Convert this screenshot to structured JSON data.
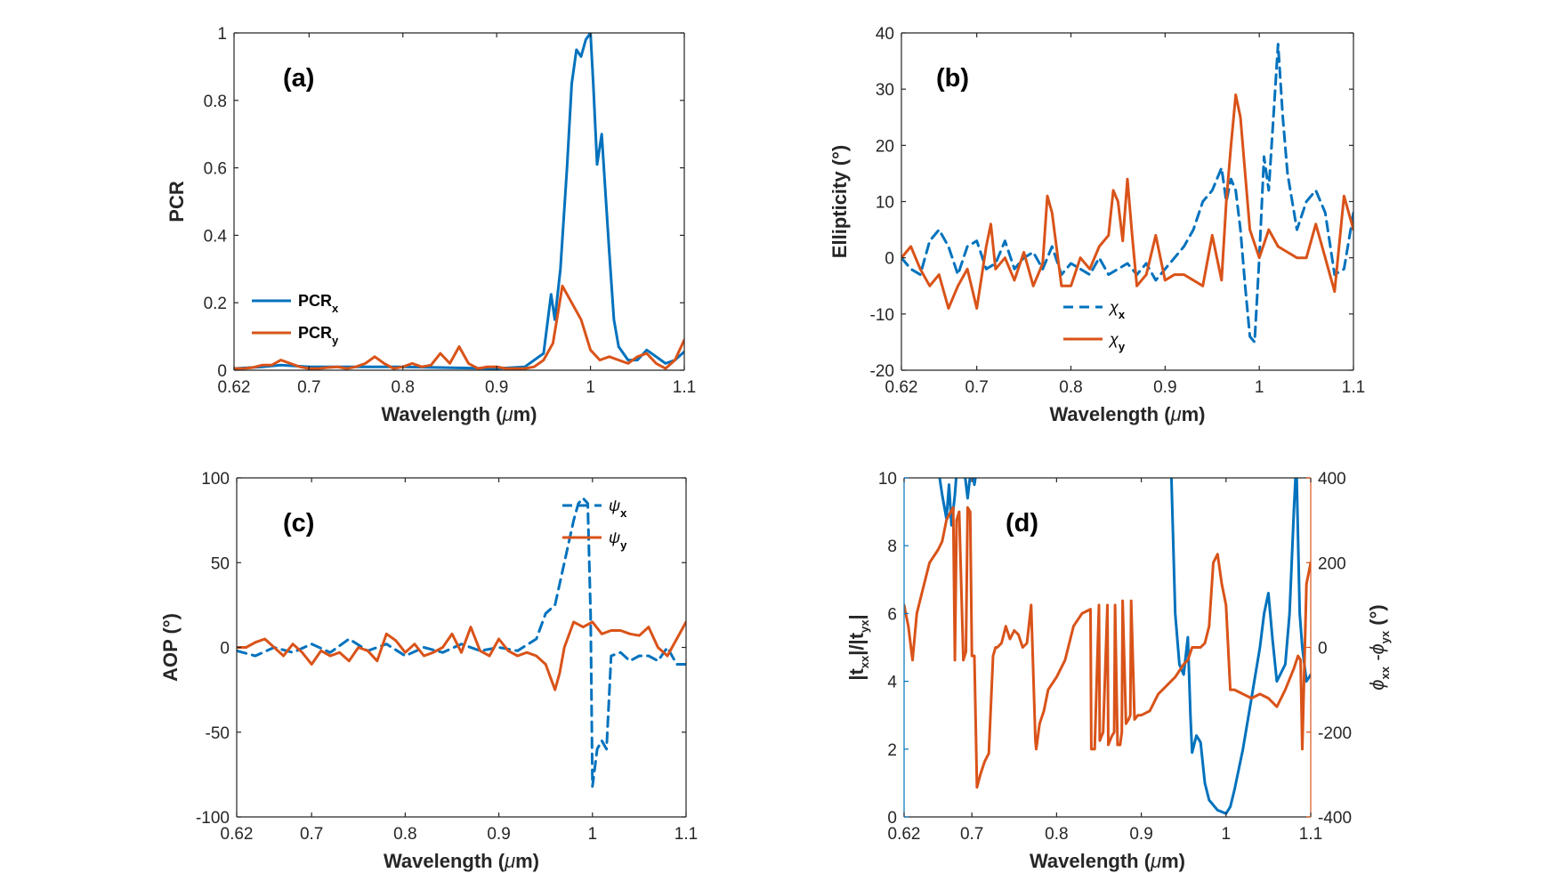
{
  "colors": {
    "blue": "#0072BD",
    "orange": "#D95319",
    "axis": "#262626"
  },
  "chart_data": [
    {
      "panel": "(a)",
      "type": "line",
      "xlabel_prefix": "Wavelength (",
      "xlabel_mu": "μ",
      "xlabel_suffix": "m)",
      "ylabel": "PCR",
      "xlim": [
        0.62,
        1.1
      ],
      "ylim": [
        0,
        1
      ],
      "xticks": [
        0.62,
        0.7,
        0.8,
        0.9,
        1,
        1.1
      ],
      "xtick_labels": [
        "0.62",
        "0.7",
        "0.8",
        "0.9",
        "1",
        "1.1"
      ],
      "yticks": [
        0,
        0.2,
        0.4,
        0.6,
        0.8,
        1
      ],
      "ytick_labels": [
        "0",
        "0.2",
        "0.4",
        "0.6",
        "0.8",
        "1"
      ],
      "legend_position": "lower-left",
      "series": [
        {
          "name": "PCR",
          "name_sub": "x",
          "color": "blue",
          "dash": false,
          "x": [
            0.62,
            0.65,
            0.67,
            0.7,
            0.8,
            0.9,
            0.93,
            0.95,
            0.958,
            0.962,
            0.968,
            0.975,
            0.98,
            0.985,
            0.99,
            0.995,
            1.0,
            1.003,
            1.007,
            1.012,
            1.02,
            1.025,
            1.03,
            1.04,
            1.05,
            1.06,
            1.07,
            1.08,
            1.09,
            1.1
          ],
          "y": [
            0.005,
            0.01,
            0.015,
            0.01,
            0.01,
            0.005,
            0.01,
            0.05,
            0.225,
            0.15,
            0.3,
            0.6,
            0.85,
            0.95,
            0.93,
            0.98,
            1.0,
            0.85,
            0.61,
            0.7,
            0.35,
            0.15,
            0.07,
            0.03,
            0.03,
            0.06,
            0.04,
            0.02,
            0.03,
            0.055
          ]
        },
        {
          "name": "PCR",
          "name_sub": "y",
          "color": "orange",
          "dash": false,
          "x": [
            0.62,
            0.63,
            0.64,
            0.65,
            0.66,
            0.67,
            0.68,
            0.69,
            0.7,
            0.71,
            0.72,
            0.73,
            0.74,
            0.75,
            0.76,
            0.77,
            0.78,
            0.79,
            0.8,
            0.81,
            0.82,
            0.83,
            0.84,
            0.85,
            0.86,
            0.87,
            0.88,
            0.89,
            0.9,
            0.91,
            0.92,
            0.93,
            0.94,
            0.95,
            0.96,
            0.97,
            0.98,
            0.99,
            1.0,
            1.01,
            1.02,
            1.03,
            1.04,
            1.05,
            1.06,
            1.07,
            1.08,
            1.09,
            1.1
          ],
          "y": [
            0.005,
            0.005,
            0.008,
            0.015,
            0.015,
            0.03,
            0.02,
            0.01,
            0.005,
            0.005,
            0.008,
            0.01,
            0.005,
            0.01,
            0.02,
            0.04,
            0.02,
            0.005,
            0.01,
            0.02,
            0.01,
            0.015,
            0.05,
            0.02,
            0.07,
            0.02,
            0.005,
            0.01,
            0.01,
            0.005,
            0.005,
            0.005,
            0.01,
            0.03,
            0.08,
            0.25,
            0.2,
            0.15,
            0.06,
            0.03,
            0.04,
            0.03,
            0.02,
            0.04,
            0.05,
            0.02,
            0.005,
            0.03,
            0.09
          ]
        }
      ]
    },
    {
      "panel": "(b)",
      "type": "line",
      "xlabel_prefix": "Wavelength (",
      "xlabel_mu": "μ",
      "xlabel_suffix": "m)",
      "ylabel": "Ellipticity (°)",
      "xlim": [
        0.62,
        1.1
      ],
      "ylim": [
        -20,
        40
      ],
      "xticks": [
        0.62,
        0.7,
        0.8,
        0.9,
        1,
        1.1
      ],
      "xtick_labels": [
        "0.62",
        "0.7",
        "0.8",
        "0.9",
        "1",
        "1.1"
      ],
      "yticks": [
        -20,
        -10,
        0,
        10,
        20,
        30,
        40
      ],
      "ytick_labels": [
        "-20",
        "-10",
        "0",
        "10",
        "20",
        "30",
        "40"
      ],
      "legend_position": "bottom-center",
      "series": [
        {
          "name": "χ",
          "name_sub": "x",
          "color": "blue",
          "dash": true,
          "x": [
            0.62,
            0.63,
            0.64,
            0.65,
            0.66,
            0.67,
            0.68,
            0.69,
            0.7,
            0.71,
            0.72,
            0.73,
            0.74,
            0.75,
            0.76,
            0.77,
            0.78,
            0.79,
            0.8,
            0.81,
            0.82,
            0.83,
            0.84,
            0.85,
            0.86,
            0.87,
            0.88,
            0.89,
            0.9,
            0.91,
            0.92,
            0.93,
            0.94,
            0.95,
            0.96,
            0.965,
            0.97,
            0.975,
            0.98,
            0.985,
            0.99,
            0.995,
            1.0,
            1.005,
            1.01,
            1.02,
            1.025,
            1.03,
            1.04,
            1.05,
            1.06,
            1.07,
            1.08,
            1.09,
            1.1
          ],
          "y": [
            0,
            -2,
            -3,
            3,
            5,
            2,
            -3,
            2,
            3,
            -2,
            -1,
            3,
            -2,
            0,
            1,
            -2,
            2,
            -3,
            -1,
            -2,
            -3,
            0,
            -3,
            -2,
            -1,
            -3,
            -1,
            -4,
            -2,
            0,
            2,
            5,
            10,
            12,
            16,
            10,
            14,
            12,
            5,
            -5,
            -14,
            -15,
            0,
            18,
            12,
            38,
            25,
            15,
            5,
            10,
            12,
            8,
            -3,
            -2,
            8
          ]
        },
        {
          "name": "χ",
          "name_sub": "y",
          "color": "orange",
          "dash": false,
          "x": [
            0.62,
            0.63,
            0.64,
            0.65,
            0.66,
            0.67,
            0.68,
            0.69,
            0.7,
            0.71,
            0.715,
            0.72,
            0.73,
            0.74,
            0.75,
            0.76,
            0.77,
            0.775,
            0.78,
            0.79,
            0.8,
            0.81,
            0.82,
            0.83,
            0.84,
            0.845,
            0.85,
            0.855,
            0.86,
            0.865,
            0.87,
            0.88,
            0.89,
            0.9,
            0.91,
            0.92,
            0.93,
            0.94,
            0.95,
            0.96,
            0.965,
            0.97,
            0.975,
            0.98,
            0.99,
            1.0,
            1.01,
            1.02,
            1.03,
            1.04,
            1.05,
            1.06,
            1.07,
            1.08,
            1.09,
            1.1
          ],
          "y": [
            0,
            2,
            -2,
            -5,
            -3,
            -9,
            -5,
            -2,
            -9,
            2,
            6,
            -2,
            0,
            -4,
            1,
            -5,
            -1,
            11,
            8,
            -5,
            -5,
            0,
            -2,
            2,
            4,
            12,
            10,
            3,
            14,
            4,
            -5,
            -3,
            4,
            -4,
            -3,
            -3,
            -4,
            -5,
            4,
            -4,
            10,
            20,
            29,
            25,
            5,
            0,
            5,
            2,
            1,
            0,
            0,
            6,
            0,
            -6,
            11,
            5
          ]
        }
      ]
    },
    {
      "panel": "(c)",
      "type": "line",
      "xlabel_prefix": "Wavelength (",
      "xlabel_mu": "μ",
      "xlabel_suffix": "m)",
      "ylabel": "AOP (°)",
      "xlim": [
        0.62,
        1.1
      ],
      "ylim": [
        -100,
        100
      ],
      "xticks": [
        0.62,
        0.7,
        0.8,
        0.9,
        1,
        1.1
      ],
      "xtick_labels": [
        "0.62",
        "0.7",
        "0.8",
        "0.9",
        "1",
        "1.1"
      ],
      "yticks": [
        -100,
        -50,
        0,
        50,
        100
      ],
      "ytick_labels": [
        "-100",
        "-50",
        "0",
        "50",
        "100"
      ],
      "legend_position": "top-right",
      "series": [
        {
          "name": "ψ",
          "name_sub": "x",
          "color": "blue",
          "dash": true,
          "x": [
            0.62,
            0.64,
            0.66,
            0.68,
            0.7,
            0.72,
            0.74,
            0.76,
            0.78,
            0.8,
            0.82,
            0.84,
            0.86,
            0.88,
            0.9,
            0.92,
            0.94,
            0.95,
            0.96,
            0.97,
            0.98,
            0.985,
            0.99,
            0.995,
            0.998,
            1.0,
            1.005,
            1.01,
            1.015,
            1.02,
            1.03,
            1.04,
            1.05,
            1.06,
            1.07,
            1.08,
            1.09,
            1.1
          ],
          "y": [
            -2,
            -5,
            0,
            -3,
            2,
            -3,
            5,
            -2,
            2,
            -5,
            0,
            -3,
            2,
            -2,
            0,
            -2,
            5,
            20,
            25,
            50,
            75,
            85,
            88,
            85,
            20,
            -82,
            -60,
            -55,
            -60,
            -5,
            -3,
            -8,
            -5,
            -5,
            -8,
            0,
            -10,
            -10
          ]
        },
        {
          "name": "ψ",
          "name_sub": "y",
          "color": "orange",
          "dash": false,
          "x": [
            0.62,
            0.63,
            0.64,
            0.65,
            0.66,
            0.67,
            0.68,
            0.69,
            0.7,
            0.71,
            0.72,
            0.73,
            0.74,
            0.75,
            0.76,
            0.77,
            0.78,
            0.79,
            0.8,
            0.81,
            0.82,
            0.83,
            0.84,
            0.85,
            0.86,
            0.87,
            0.88,
            0.89,
            0.9,
            0.91,
            0.92,
            0.93,
            0.94,
            0.95,
            0.96,
            0.965,
            0.97,
            0.98,
            0.99,
            1.0,
            1.01,
            1.02,
            1.03,
            1.04,
            1.05,
            1.06,
            1.07,
            1.08,
            1.09,
            1.1
          ],
          "y": [
            0,
            0,
            3,
            5,
            0,
            -5,
            2,
            -3,
            -10,
            -2,
            -5,
            -3,
            -8,
            0,
            -2,
            -8,
            8,
            4,
            -3,
            2,
            -5,
            -3,
            0,
            8,
            -3,
            12,
            -2,
            -5,
            5,
            -2,
            -5,
            -3,
            -5,
            -10,
            -25,
            -15,
            0,
            15,
            12,
            15,
            8,
            10,
            10,
            8,
            7,
            12,
            0,
            -5,
            5,
            15
          ]
        }
      ]
    },
    {
      "panel": "(d)",
      "type": "line",
      "xlabel_prefix": "Wavelength (",
      "xlabel_mu": "μ",
      "xlabel_suffix": "m)",
      "ylabel_left": "|t",
      "ylabel_left_sub1": "xx",
      "ylabel_left_mid": "|/|t",
      "ylabel_left_sub2": "yx",
      "ylabel_left_end": "|",
      "ylabel_right": "ϕ",
      "ylabel_right_sub1": "xx",
      "ylabel_right_mid": " -ϕ",
      "ylabel_right_sub2": "yx",
      "ylabel_right_end": " (°)",
      "xlim": [
        0.62,
        1.1
      ],
      "ylim_left": [
        0,
        10
      ],
      "ylim_right": [
        -400,
        400
      ],
      "xticks": [
        0.62,
        0.7,
        0.8,
        0.9,
        1,
        1.1
      ],
      "xtick_labels": [
        "0.62",
        "0.7",
        "0.8",
        "0.9",
        "1",
        "1.1"
      ],
      "yticks_left": [
        0,
        2,
        4,
        6,
        8,
        10
      ],
      "ytick_labels_left": [
        "0",
        "2",
        "4",
        "6",
        "8",
        "10"
      ],
      "yticks_right": [
        -400,
        -200,
        0,
        200,
        400
      ],
      "ytick_labels_right": [
        "-400",
        "-200",
        "0",
        "200",
        "400"
      ],
      "series": [
        {
          "name": "",
          "color": "blue",
          "dash": false,
          "axis": "left",
          "x": [
            0.659,
            0.665,
            0.67,
            0.673,
            0.676,
            0.68,
            0.683,
            0.686,
            0.69,
            0.695,
            0.7,
            0.703,
            0.706,
            0.71
          ],
          "y": [
            10.5,
            9.5,
            8.8,
            9.8,
            8.6,
            9.5,
            10.5,
            10.5,
            10.5,
            9.4,
            10.5,
            9.8,
            10.3,
            10.5
          ]
        },
        {
          "name": "",
          "color": "blue",
          "dash": false,
          "axis": "left",
          "x": [
            0.935,
            0.94,
            0.945,
            0.95,
            0.955,
            0.958,
            0.96,
            0.965,
            0.97,
            0.975,
            0.98,
            0.99,
            1.0,
            1.005,
            1.01,
            1.02,
            1.03,
            1.04,
            1.045,
            1.05,
            1.055,
            1.06,
            1.07,
            1.075,
            1.08,
            1.083,
            1.087,
            1.09,
            1.095,
            1.1
          ],
          "y": [
            10.5,
            6,
            4.5,
            4.2,
            5.3,
            3,
            1.9,
            2.4,
            2.2,
            1,
            0.5,
            0.2,
            0.1,
            0.3,
            0.8,
            2,
            3.5,
            5,
            6,
            6.6,
            5.2,
            4,
            4.5,
            6,
            9,
            10.5,
            6,
            5,
            4,
            4.2
          ]
        },
        {
          "name": "",
          "color": "orange",
          "dash": false,
          "axis": "right",
          "x": [
            0.62,
            0.622,
            0.625,
            0.63,
            0.635,
            0.64,
            0.65,
            0.66,
            0.665,
            0.67,
            0.675,
            0.678,
            0.68,
            0.682,
            0.685,
            0.69,
            0.693,
            0.695,
            0.698,
            0.7,
            0.703,
            0.706,
            0.71,
            0.715,
            0.72,
            0.725,
            0.728,
            0.73,
            0.735,
            0.74,
            0.745,
            0.75,
            0.755,
            0.76,
            0.765,
            0.77,
            0.775,
            0.776,
            0.78,
            0.785,
            0.79,
            0.8,
            0.81,
            0.82,
            0.83,
            0.84,
            0.841,
            0.845,
            0.85,
            0.851,
            0.855,
            0.86,
            0.861,
            0.865,
            0.868,
            0.869,
            0.872,
            0.875,
            0.877,
            0.878,
            0.882,
            0.885,
            0.887,
            0.888,
            0.892,
            0.896,
            0.9,
            0.91,
            0.92,
            0.93,
            0.94,
            0.95,
            0.955,
            0.96,
            0.965,
            0.97,
            0.975,
            0.98,
            0.985,
            0.99,
            0.995,
            1.0,
            1.005,
            1.01,
            1.02,
            1.03,
            1.04,
            1.05,
            1.06,
            1.07,
            1.08,
            1.085,
            1.088,
            1.09,
            1.095,
            1.1
          ],
          "y": [
            100,
            80,
            50,
            -30,
            80,
            120,
            200,
            230,
            250,
            300,
            320,
            330,
            -30,
            300,
            320,
            -30,
            -10,
            330,
            320,
            -20,
            -20,
            -330,
            -300,
            -270,
            -250,
            -20,
            0,
            0,
            10,
            50,
            20,
            40,
            30,
            0,
            10,
            100,
            -220,
            -240,
            -180,
            -150,
            -100,
            -70,
            -30,
            50,
            80,
            90,
            -240,
            -240,
            100,
            -220,
            -200,
            100,
            -230,
            -210,
            -200,
            100,
            -230,
            -230,
            -200,
            110,
            -180,
            -170,
            -160,
            110,
            -170,
            -160,
            -160,
            -150,
            -110,
            -90,
            -70,
            -40,
            -30,
            0,
            0,
            0,
            10,
            50,
            200,
            220,
            150,
            100,
            -100,
            -100,
            -110,
            -120,
            -110,
            -120,
            -140,
            -100,
            -50,
            -20,
            -30,
            -240,
            150,
            200
          ]
        }
      ]
    }
  ]
}
